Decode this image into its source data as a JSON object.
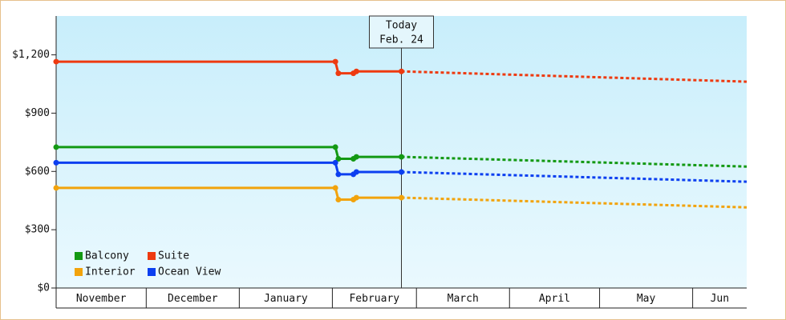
{
  "chart_data": {
    "type": "line",
    "xlim": [
      0,
      230
    ],
    "xticks": [
      0,
      30,
      61,
      92,
      120,
      151,
      181,
      212
    ],
    "months": [
      "November",
      "December",
      "January",
      "February",
      "March",
      "April",
      "May",
      "Jun"
    ],
    "ylim": [
      0,
      1400
    ],
    "yticks": [
      {
        "value": 0,
        "label": "$0"
      },
      {
        "value": 300,
        "label": "$300"
      },
      {
        "value": 600,
        "label": "$600"
      },
      {
        "value": 900,
        "label": "$900"
      },
      {
        "value": 1200,
        "label": "$1,200"
      }
    ],
    "today": {
      "x": 115,
      "label": "Today",
      "date": "Feb. 24"
    },
    "x": [
      0,
      93,
      94,
      99,
      100,
      115
    ],
    "forecast_x": [
      115,
      230
    ],
    "series": [
      {
        "name": "Balcony",
        "color": "#139913",
        "values": [
          725,
          725,
          665,
          665,
          675,
          675
        ],
        "forecast": [
          675,
          625
        ]
      },
      {
        "name": "Suite",
        "color": "#ee3a10",
        "values": [
          1165,
          1165,
          1105,
          1105,
          1115,
          1115
        ],
        "forecast": [
          1115,
          1062
        ]
      },
      {
        "name": "Interior",
        "color": "#f2a30c",
        "values": [
          515,
          515,
          455,
          455,
          465,
          465
        ],
        "forecast": [
          465,
          415
        ]
      },
      {
        "name": "Ocean View",
        "color": "#0c3ff0",
        "values": [
          645,
          645,
          585,
          585,
          597,
          597
        ],
        "forecast": [
          597,
          547
        ]
      }
    ],
    "legend": "lower left"
  }
}
